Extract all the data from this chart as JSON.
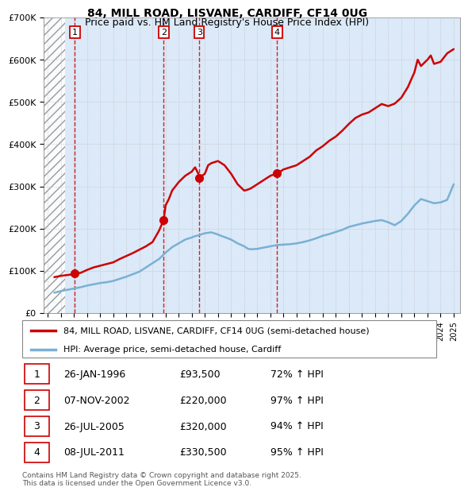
{
  "title": "84, MILL ROAD, LISVANE, CARDIFF, CF14 0UG",
  "subtitle": "Price paid vs. HM Land Registry's House Price Index (HPI)",
  "ylim": [
    0,
    700000
  ],
  "yticks": [
    0,
    100000,
    200000,
    300000,
    400000,
    500000,
    600000,
    700000
  ],
  "ytick_labels": [
    "£0",
    "£100K",
    "£200K",
    "£300K",
    "£400K",
    "£500K",
    "£600K",
    "£700K"
  ],
  "xlim_start": 1993.7,
  "xlim_end": 2025.5,
  "hpi_color": "#7ab0d4",
  "price_color": "#cc0000",
  "bg_color": "#dbe9f8",
  "hatch_end": 1995.3,
  "sales": [
    {
      "num": 1,
      "date": "26-JAN-1996",
      "x": 1996.07,
      "price": 93500,
      "pct": "72%"
    },
    {
      "num": 2,
      "date": "07-NOV-2002",
      "x": 2002.85,
      "price": 220000,
      "pct": "97%"
    },
    {
      "num": 3,
      "date": "26-JUL-2005",
      "x": 2005.57,
      "price": 320000,
      "pct": "94%"
    },
    {
      "num": 4,
      "date": "08-JUL-2011",
      "x": 2011.52,
      "price": 330500,
      "pct": "95%"
    }
  ],
  "legend_line1": "84, MILL ROAD, LISVANE, CARDIFF, CF14 0UG (semi-detached house)",
  "legend_line2": "HPI: Average price, semi-detached house, Cardiff",
  "footer": "Contains HM Land Registry data © Crown copyright and database right 2025.\nThis data is licensed under the Open Government Licence v3.0.",
  "hpi_data_x": [
    1994.5,
    1995.0,
    1995.5,
    1996.0,
    1996.5,
    1997.0,
    1997.5,
    1998.0,
    1998.5,
    1999.0,
    1999.5,
    2000.0,
    2000.5,
    2001.0,
    2001.5,
    2002.0,
    2002.5,
    2003.0,
    2003.5,
    2004.0,
    2004.5,
    2005.0,
    2005.25,
    2005.5,
    2006.0,
    2006.5,
    2007.0,
    2007.3,
    2007.5,
    2008.0,
    2008.5,
    2009.0,
    2009.3,
    2009.5,
    2010.0,
    2010.5,
    2011.0,
    2011.5,
    2012.0,
    2012.5,
    2013.0,
    2013.5,
    2014.0,
    2014.5,
    2015.0,
    2015.25,
    2015.5,
    2016.0,
    2016.5,
    2017.0,
    2017.5,
    2018.0,
    2018.5,
    2019.0,
    2019.5,
    2020.0,
    2020.5,
    2021.0,
    2021.5,
    2022.0,
    2022.5,
    2023.0,
    2023.5,
    2024.0,
    2024.5,
    2025.0
  ],
  "hpi_data_y": [
    48000,
    52000,
    55000,
    58000,
    61000,
    65000,
    68000,
    71000,
    73000,
    76000,
    81000,
    86000,
    92000,
    98000,
    108000,
    118000,
    128000,
    143000,
    156000,
    165000,
    174000,
    179000,
    182000,
    184000,
    189000,
    191000,
    186000,
    182000,
    180000,
    174000,
    165000,
    158000,
    152000,
    151000,
    152000,
    155000,
    158000,
    161000,
    162000,
    163000,
    165000,
    168000,
    172000,
    177000,
    183000,
    185000,
    187000,
    192000,
    197000,
    204000,
    208000,
    212000,
    215000,
    218000,
    220000,
    215000,
    208000,
    218000,
    235000,
    255000,
    270000,
    265000,
    260000,
    262000,
    268000,
    305000
  ],
  "price_data_x": [
    1994.5,
    1995.0,
    1995.5,
    1996.0,
    1996.07,
    1996.5,
    1997.0,
    1997.5,
    1998.0,
    1998.5,
    1999.0,
    1999.5,
    2000.0,
    2000.5,
    2001.0,
    2001.5,
    2002.0,
    2002.5,
    2002.85,
    2003.0,
    2003.25,
    2003.5,
    2004.0,
    2004.5,
    2005.0,
    2005.25,
    2005.5,
    2005.57,
    2006.0,
    2006.25,
    2006.5,
    2007.0,
    2007.25,
    2007.5,
    2008.0,
    2008.5,
    2009.0,
    2009.25,
    2009.5,
    2010.0,
    2010.5,
    2011.0,
    2011.52,
    2012.0,
    2012.5,
    2013.0,
    2013.5,
    2014.0,
    2014.5,
    2015.0,
    2015.5,
    2016.0,
    2016.5,
    2017.0,
    2017.5,
    2018.0,
    2018.5,
    2019.0,
    2019.5,
    2020.0,
    2020.5,
    2021.0,
    2021.5,
    2022.0,
    2022.25,
    2022.5,
    2023.0,
    2023.25,
    2023.5,
    2024.0,
    2024.5,
    2025.0
  ],
  "price_data_y": [
    85000,
    88000,
    90000,
    92000,
    93500,
    95000,
    102000,
    108000,
    112000,
    116000,
    120000,
    128000,
    135000,
    142000,
    150000,
    158000,
    168000,
    195000,
    220000,
    255000,
    270000,
    290000,
    310000,
    325000,
    335000,
    345000,
    330000,
    320000,
    330000,
    350000,
    355000,
    360000,
    355000,
    350000,
    330000,
    305000,
    290000,
    292000,
    295000,
    305000,
    315000,
    325000,
    330500,
    340000,
    345000,
    350000,
    360000,
    370000,
    385000,
    395000,
    408000,
    418000,
    432000,
    448000,
    462000,
    470000,
    475000,
    485000,
    495000,
    490000,
    496000,
    510000,
    535000,
    570000,
    600000,
    585000,
    600000,
    610000,
    590000,
    595000,
    615000,
    625000
  ]
}
